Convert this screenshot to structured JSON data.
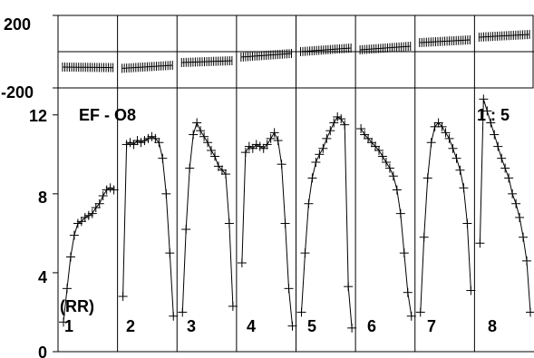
{
  "chart_data": [
    {
      "type": "line",
      "panel": "top",
      "ylim": [
        -200,
        200
      ],
      "y_ticks": [
        {
          "value": 200,
          "label": "200"
        },
        {
          "value": -200,
          "label": "-200"
        }
      ],
      "reference_line_y": 0,
      "segment_count": 8,
      "series": [
        {
          "values": [
            [
              -85,
              -88
            ],
            [
              -92,
              -75
            ],
            [
              -60,
              -50
            ],
            [
              -30,
              -10
            ],
            [
              0,
              20
            ],
            [
              10,
              30
            ],
            [
              50,
              65
            ],
            [
              80,
              95
            ]
          ]
        }
      ]
    },
    {
      "type": "line",
      "panel": "bottom",
      "ylim": [
        0,
        13
      ],
      "y_ticks": [
        {
          "value": 0,
          "label": "0"
        },
        {
          "value": 4,
          "label": "4"
        },
        {
          "value": 8,
          "label": "8"
        },
        {
          "value": 12,
          "label": "12"
        }
      ],
      "annotations": {
        "title": "EF - O8",
        "corner": "1 : 5",
        "axis_tag": "(RR)"
      },
      "segments": [
        {
          "label": "1",
          "values": [
            1.5,
            3.2,
            4.8,
            5.9,
            6.5,
            6.6,
            6.8,
            6.9,
            7.0,
            7.3,
            7.5,
            7.9,
            8.2,
            8.3,
            8.2
          ]
        },
        {
          "label": "2",
          "values": [
            2.8,
            10.5,
            10.6,
            10.5,
            10.7,
            10.6,
            10.7,
            10.8,
            10.9,
            10.8,
            10.6,
            9.8,
            8.0,
            5.0,
            1.8
          ]
        },
        {
          "label": "3",
          "values": [
            2.0,
            6.2,
            9.3,
            11.0,
            11.6,
            11.2,
            10.9,
            10.6,
            10.2,
            9.9,
            9.4,
            9.2,
            9.0,
            6.5,
            2.3
          ]
        },
        {
          "label": "4",
          "values": [
            4.5,
            10.1,
            10.4,
            10.3,
            10.5,
            10.4,
            10.3,
            10.5,
            10.8,
            11.1,
            10.7,
            9.5,
            6.5,
            3.2,
            1.3
          ]
        },
        {
          "label": "5",
          "values": [
            2.0,
            5.0,
            7.5,
            8.8,
            9.6,
            10.0,
            10.3,
            10.8,
            11.2,
            11.6,
            11.9,
            11.8,
            11.5,
            3.3,
            1.2
          ]
        },
        {
          "label": "6",
          "values": [
            11.3,
            11.0,
            10.8,
            10.6,
            10.4,
            10.2,
            9.9,
            9.6,
            9.3,
            8.9,
            8.2,
            7.0,
            5.0,
            3.0,
            1.8
          ]
        },
        {
          "label": "7",
          "values": [
            2.0,
            5.8,
            8.8,
            10.6,
            11.4,
            11.6,
            11.4,
            11.1,
            10.8,
            10.3,
            9.8,
            9.2,
            8.3,
            6.5,
            3.1
          ]
        },
        {
          "label": "8",
          "values": [
            5.5,
            12.8,
            12.2,
            11.6,
            11.0,
            10.4,
            9.8,
            9.3,
            8.8,
            8.0,
            7.5,
            6.8,
            5.8,
            4.6,
            2.0
          ]
        }
      ]
    }
  ]
}
